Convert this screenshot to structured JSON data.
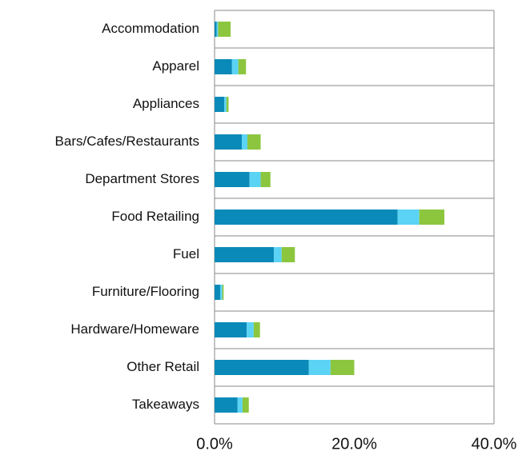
{
  "chart_data": {
    "type": "stacked-bar-horizontal",
    "categories": [
      "Accommodation",
      "Apparel",
      "Appliances",
      "Bars/Cafes/Restaurants",
      "Department Stores",
      "Food Retailing",
      "Fuel",
      "Furniture/Flooring",
      "Hardware/Homeware",
      "Other Retail",
      "Takeaways"
    ],
    "series": [
      {
        "color": "#0a8ab8",
        "values": [
          0.3,
          2.5,
          1.4,
          3.9,
          5.0,
          26.2,
          8.5,
          0.8,
          4.6,
          13.5,
          3.3
        ]
      },
      {
        "color": "#5bd3f5",
        "values": [
          0.2,
          0.9,
          0.3,
          0.8,
          1.6,
          3.1,
          1.1,
          0.3,
          1.0,
          3.1,
          0.7
        ]
      },
      {
        "color": "#8cc63f",
        "values": [
          1.8,
          1.1,
          0.3,
          1.9,
          1.4,
          3.6,
          1.9,
          0.2,
          0.9,
          3.4,
          0.9
        ]
      }
    ],
    "xlim": [
      0,
      40
    ],
    "xticks": [
      {
        "value": 0,
        "label": "0.0%"
      },
      {
        "value": 20,
        "label": "20.0%"
      },
      {
        "value": 40,
        "label": "40.0%"
      }
    ]
  }
}
